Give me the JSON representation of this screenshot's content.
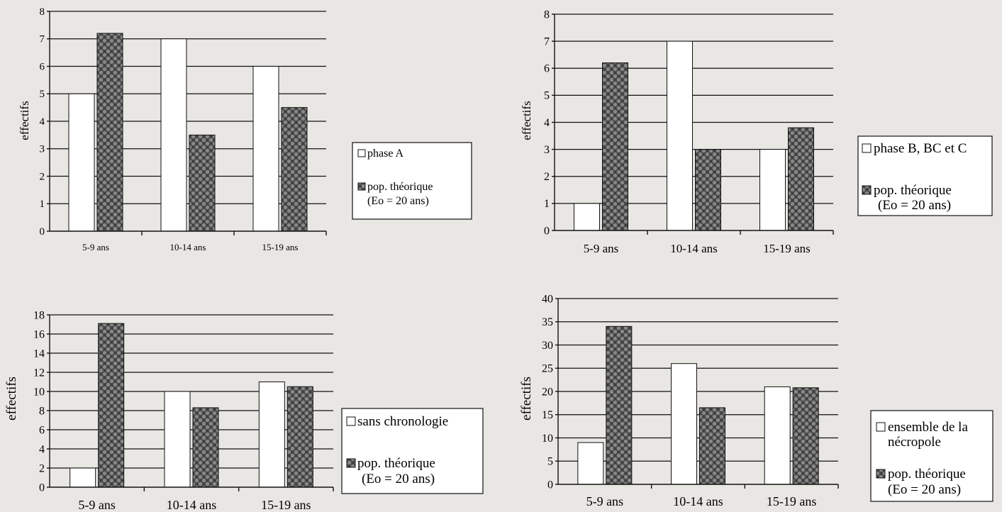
{
  "chart_data": [
    {
      "type": "bar",
      "ylabel": "effectifs",
      "ylim": [
        0,
        8
      ],
      "yticks": [
        "0",
        "1",
        "2",
        "3",
        "4",
        "5",
        "6",
        "7",
        "8"
      ],
      "categories": [
        "5-9 ans",
        "10-14 ans",
        "15-19 ans"
      ],
      "series": [
        {
          "name": "phase A",
          "values": [
            5,
            7,
            6
          ]
        },
        {
          "name": "pop. théorique",
          "name2": "(Eo = 20 ans)",
          "values": [
            7.2,
            3.5,
            4.5
          ]
        }
      ],
      "grid": true
    },
    {
      "type": "bar",
      "ylabel": "effectifs",
      "ylim": [
        0,
        8
      ],
      "yticks": [
        "0",
        "1",
        "2",
        "3",
        "4",
        "5",
        "6",
        "7",
        "8"
      ],
      "categories": [
        "5-9  ans",
        "10-14  ans",
        "15-19  ans"
      ],
      "series": [
        {
          "name": "phase B, BC et C",
          "values": [
            1,
            7,
            3
          ]
        },
        {
          "name": "pop. théorique",
          "name2": "(Eo = 20 ans)",
          "values": [
            6.2,
            3.0,
            3.8
          ]
        }
      ],
      "grid": true
    },
    {
      "type": "bar",
      "ylabel": "effectifs",
      "ylim": [
        0,
        18
      ],
      "yticks": [
        "0",
        "2",
        "4",
        "6",
        "8",
        "10",
        "12",
        "14",
        "16",
        "18"
      ],
      "categories": [
        "5-9 ans",
        "10-14 ans",
        "15-19 ans"
      ],
      "series": [
        {
          "name": "sans chronologie",
          "values": [
            2,
            10,
            11
          ]
        },
        {
          "name": "pop. théorique",
          "name2": "(Eo = 20 ans)",
          "values": [
            17.1,
            8.3,
            10.5
          ]
        }
      ],
      "grid": true
    },
    {
      "type": "bar",
      "ylabel": "effectifs",
      "ylim": [
        0,
        40
      ],
      "yticks": [
        "0",
        "5",
        "10",
        "15",
        "20",
        "25",
        "30",
        "35",
        "40"
      ],
      "categories": [
        "5-9 ans",
        "10-14 ans",
        "15-19 ans"
      ],
      "series": [
        {
          "name": "ensemble de la",
          "name2": "nécropole",
          "values": [
            9,
            26,
            21
          ]
        },
        {
          "name": "pop. théorique",
          "name2": "(Eo = 20 ans)",
          "values": [
            34,
            16.5,
            20.8
          ]
        }
      ],
      "grid": true
    }
  ]
}
